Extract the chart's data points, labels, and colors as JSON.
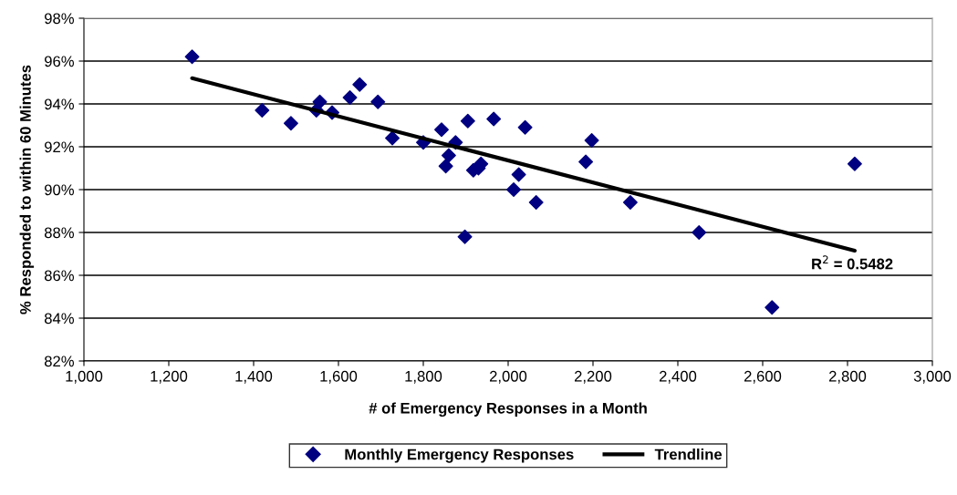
{
  "chart_data": {
    "type": "scatter",
    "xlabel": "# of Emergency Responses in a Month",
    "ylabel": "% Responded to within 60 Minutes",
    "xlim": [
      1000,
      3000
    ],
    "ylim": [
      82,
      98
    ],
    "xticks": [
      {
        "value": 1000,
        "label": "1,000"
      },
      {
        "value": 1200,
        "label": "1,200"
      },
      {
        "value": 1400,
        "label": "1,400"
      },
      {
        "value": 1600,
        "label": "1,600"
      },
      {
        "value": 1800,
        "label": "1,800"
      },
      {
        "value": 2000,
        "label": "2,000"
      },
      {
        "value": 2200,
        "label": "2,200"
      },
      {
        "value": 2400,
        "label": "2,400"
      },
      {
        "value": 2600,
        "label": "2,600"
      },
      {
        "value": 2800,
        "label": "2,800"
      },
      {
        "value": 3000,
        "label": "3,000"
      }
    ],
    "yticks": [
      {
        "value": 82,
        "label": "82%"
      },
      {
        "value": 84,
        "label": "84%"
      },
      {
        "value": 86,
        "label": "86%"
      },
      {
        "value": 88,
        "label": "88%"
      },
      {
        "value": 90,
        "label": "90%"
      },
      {
        "value": 92,
        "label": "92%"
      },
      {
        "value": 94,
        "label": "94%"
      },
      {
        "value": 96,
        "label": "96%"
      },
      {
        "value": 98,
        "label": "98%"
      }
    ],
    "grid": "y",
    "legend": "bottom",
    "series": [
      {
        "name": "Monthly Emergency Responses",
        "color": "#000080",
        "marker": "diamond",
        "x": [
          1255,
          1420,
          1488,
          1548,
          1556,
          1585,
          1627,
          1650,
          1693,
          1727,
          1800,
          1843,
          1853,
          1860,
          1876,
          1898,
          1905,
          1918,
          1930,
          1936,
          1966,
          2013,
          2025,
          2040,
          2066,
          2183,
          2197,
          2288,
          2450,
          2622,
          2817
        ],
        "values": [
          96.2,
          93.7,
          93.1,
          93.7,
          94.1,
          93.6,
          94.3,
          94.9,
          94.1,
          92.4,
          92.2,
          92.8,
          91.1,
          91.6,
          92.2,
          87.8,
          93.2,
          90.9,
          91.0,
          91.2,
          93.3,
          90.0,
          90.7,
          92.9,
          89.4,
          91.3,
          92.3,
          89.4,
          88.0,
          84.5,
          91.2
        ]
      },
      {
        "name": "Trendline",
        "type": "line",
        "color": "#000000",
        "marker": "none",
        "line_style": "solid",
        "x": [
          1255,
          2817
        ],
        "values": [
          95.2,
          87.15
        ]
      }
    ],
    "annotations": [
      {
        "text": "R$^{2}$ = 0.5482",
        "x": 2817,
        "y": 87.15
      }
    ]
  }
}
